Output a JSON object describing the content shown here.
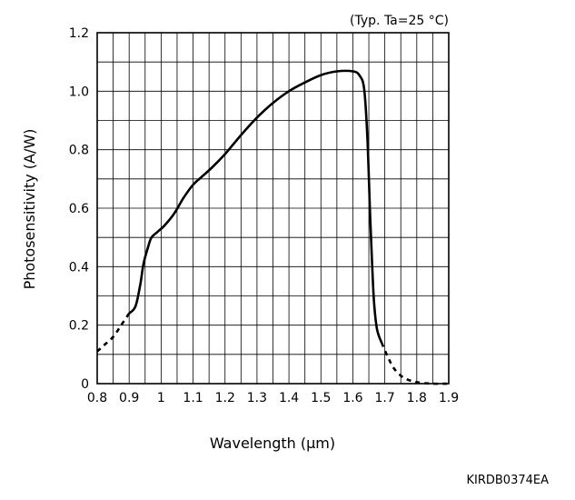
{
  "chart_data": {
    "type": "line",
    "condition": "(Typ. Ta=25 °C)",
    "xlabel": "Wavelength (μm)",
    "ylabel": "Photosensitivity (A/W)",
    "xlim": [
      0.8,
      1.9
    ],
    "ylim": [
      0,
      1.2
    ],
    "x_ticks": [
      "0.8",
      "0.9",
      "1",
      "1.1",
      "1.2",
      "1.3",
      "1.4",
      "1.5",
      "1.6",
      "1.7",
      "1.8",
      "1.9"
    ],
    "y_ticks": [
      "0",
      "0.2",
      "0.4",
      "0.6",
      "0.8",
      "1.0",
      "1.2"
    ],
    "grid": true,
    "series": [
      {
        "segments": [
          {
            "style": "dashed",
            "points": [
              [
                0.8,
                0.11
              ],
              [
                0.82,
                0.13
              ],
              [
                0.85,
                0.16
              ],
              [
                0.875,
                0.2
              ],
              [
                0.9,
                0.24
              ]
            ]
          },
          {
            "style": "solid",
            "points": [
              [
                0.9,
                0.24
              ],
              [
                0.92,
                0.265
              ],
              [
                0.935,
                0.34
              ],
              [
                0.945,
                0.41
              ],
              [
                0.96,
                0.47
              ],
              [
                0.97,
                0.5
              ],
              [
                0.99,
                0.52
              ],
              [
                1.01,
                0.54
              ],
              [
                1.04,
                0.58
              ],
              [
                1.07,
                0.635
              ],
              [
                1.1,
                0.68
              ],
              [
                1.13,
                0.71
              ],
              [
                1.16,
                0.74
              ],
              [
                1.2,
                0.785
              ],
              [
                1.25,
                0.85
              ],
              [
                1.3,
                0.91
              ],
              [
                1.35,
                0.96
              ],
              [
                1.4,
                1.0
              ],
              [
                1.45,
                1.03
              ],
              [
                1.5,
                1.055
              ],
              [
                1.55,
                1.068
              ],
              [
                1.6,
                1.068
              ],
              [
                1.62,
                1.055
              ],
              [
                1.635,
                1.01
              ],
              [
                1.645,
                0.85
              ],
              [
                1.655,
                0.55
              ],
              [
                1.665,
                0.3
              ],
              [
                1.675,
                0.19
              ],
              [
                1.69,
                0.14
              ]
            ]
          },
          {
            "style": "dashed",
            "points": [
              [
                1.69,
                0.14
              ],
              [
                1.71,
                0.09
              ],
              [
                1.73,
                0.05
              ],
              [
                1.76,
                0.02
              ],
              [
                1.8,
                0.005
              ],
              [
                1.85,
                0.0
              ],
              [
                1.9,
                0.0
              ]
            ]
          }
        ]
      }
    ]
  },
  "footer": {
    "code": "KIRDB0374EA"
  }
}
